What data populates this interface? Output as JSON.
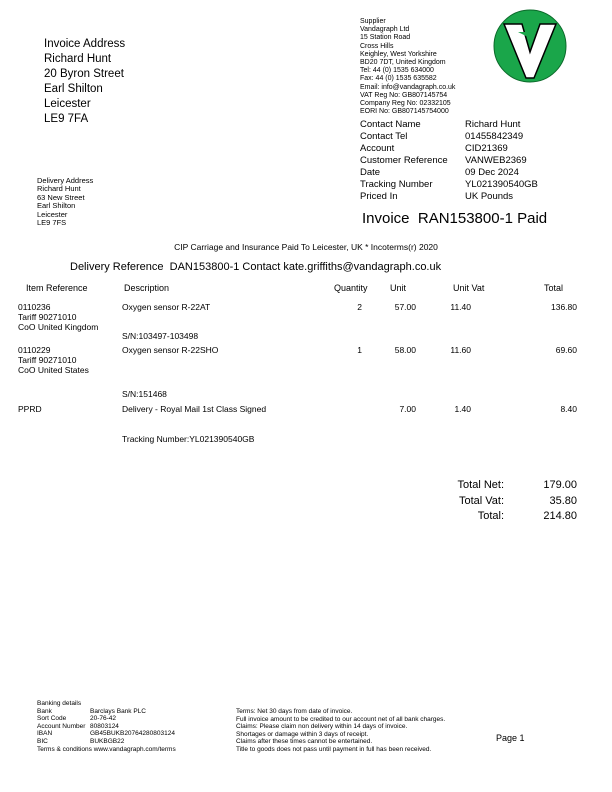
{
  "invoice_address": {
    "lines": [
      "Invoice Address",
      "Richard Hunt",
      "20 Byron Street",
      "Earl Shilton",
      "Leicester",
      "LE9 7FA"
    ]
  },
  "delivery_address": {
    "lines": [
      "Delivery Address",
      "Richard Hunt",
      "63 New Street",
      "Earl Shilton",
      "Leicester",
      "LE9 7FS"
    ]
  },
  "supplier": {
    "lines": [
      "Supplier",
      "Vandagraph Ltd",
      "15 Station Road",
      "Cross Hills",
      "Keighley, West Yorkshire",
      "BD20 7DT, United Kingdom",
      "Tel: 44 (0) 1535 634000",
      "Fax: 44 (0) 1535 635582",
      "Email: info@vandagraph.co.uk",
      "VAT Reg No: GB807145754",
      "Company Reg No: 02332105",
      "EORI No: GB807145754000"
    ]
  },
  "logo": {
    "text": "V",
    "color": "#1aa64a"
  },
  "contact": [
    {
      "label": "Contact Name",
      "value": "Richard Hunt"
    },
    {
      "label": "Contact Tel",
      "value": "01455842349"
    },
    {
      "label": "Account",
      "value": "CID21369"
    },
    {
      "label": "Customer Reference",
      "value": "VANWEB2369"
    },
    {
      "label": "Date",
      "value": "09 Dec 2024"
    },
    {
      "label": "Tracking Number",
      "value": "YL021390540GB"
    },
    {
      "label": "Priced In",
      "value": "UK Pounds"
    }
  ],
  "invoice_title": "Invoice  RAN153800-1 Paid",
  "incoterms": "CIP Carriage and Insurance Paid To Leicester, UK * Incoterms(r) 2020",
  "delivery_reference": "Delivery Reference  DAN153800-1 Contact kate.griffiths@vandagraph.co.uk",
  "table": {
    "headers": [
      "Item Reference",
      "Description",
      "Quantity",
      "Unit",
      "Unit Vat",
      "Total"
    ],
    "rows": [
      {
        "ref": [
          "0110236",
          "Tariff 90271010",
          "CoO United Kingdom"
        ],
        "desc": "Oxygen sensor R-22AT",
        "note": "S/N:103497-103498",
        "qty": "2",
        "unit": "57.00",
        "vat": "11.40",
        "total": "136.80"
      },
      {
        "ref": [
          "0110229",
          "Tariff 90271010",
          "CoO United States"
        ],
        "desc": "Oxygen sensor R-22SHO",
        "note": "S/N:151468",
        "qty": "1",
        "unit": "58.00",
        "vat": "11.60",
        "total": "69.60"
      },
      {
        "ref": [
          "PPRD"
        ],
        "desc": "Delivery - Royal Mail 1st Class Signed",
        "note": "Tracking Number:YL021390540GB",
        "qty": "",
        "unit": "7.00",
        "vat": "1.40",
        "total": "8.40"
      }
    ]
  },
  "totals": [
    {
      "label": "Total Net:",
      "value": "179.00"
    },
    {
      "label": "Total Vat:",
      "value": "35.80"
    },
    {
      "label": "Total:",
      "value": "214.80"
    }
  ],
  "banking": {
    "title": "Banking details",
    "rows": [
      {
        "label": "Bank",
        "value": "Barclays Bank PLC"
      },
      {
        "label": "Sort Code",
        "value": "20-76-42"
      },
      {
        "label": "Account Number",
        "value": "80803124"
      },
      {
        "label": "IBAN",
        "value": "GB45BUKB20764280803124"
      },
      {
        "label": "BIC",
        "value": "BUKBGB22"
      }
    ],
    "terms_link": "Terms & conditions www.vandagraph.com/terms"
  },
  "terms": [
    "Terms: Net 30 days from date of invoice.",
    "Full invoice amount to be credited to our account net of all bank charges.",
    "Claims: Please claim non delivery within 14 days of invoice.",
    "Shortages or damage within 3 days of receipt.",
    "Claims after these times cannot be entertained.",
    "Title to goods does not pass until payment in full has been received."
  ],
  "page_label": "Page 1"
}
